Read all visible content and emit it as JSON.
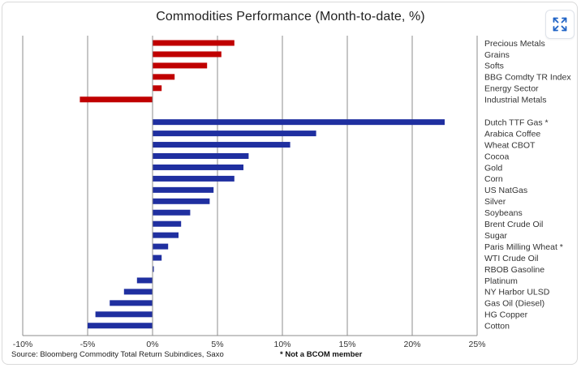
{
  "title": "Commodities Performance (Month-to-date, %)",
  "source": "Source: Bloomberg Commodity Total Return Subindices, Saxo",
  "note": "* Not a BCOM member",
  "expand_icon": "expand-arrows-icon",
  "colors": {
    "sector": "#c00000",
    "commodity": "#1f2fa0",
    "grid": "#8c8c8c",
    "axis": "#8c8c8c"
  },
  "chart_data": {
    "type": "bar",
    "orientation": "horizontal",
    "title": "Commodities Performance (Month-to-date, %)",
    "xlabel": "",
    "ylabel": "",
    "xlim": [
      -10,
      25
    ],
    "x_ticks": [
      "-10%",
      "-5%",
      "0%",
      "5%",
      "10%",
      "15%",
      "20%",
      "25%"
    ],
    "x_tick_values": [
      -10,
      -5,
      0,
      5,
      10,
      15,
      20,
      25
    ],
    "grid": "vertical",
    "groups": [
      {
        "color": "#c00000",
        "categories": [
          "Precious Metals",
          "Grains",
          "Softs",
          "BBG Comdty TR Index",
          "Energy Sector",
          "Industrial Metals"
        ],
        "values": [
          6.3,
          5.3,
          4.2,
          1.7,
          0.7,
          -5.6
        ]
      },
      {
        "color": "#1f2fa0",
        "categories": [
          "Dutch TTF Gas *",
          "Arabica Coffee",
          "Wheat CBOT",
          "Cocoa",
          "Gold",
          "Corn",
          "US NatGas",
          "Silver",
          "Soybeans",
          "Brent Crude Oil",
          "Sugar",
          "Paris Milling Wheat *",
          "WTI Crude Oil",
          "RBOB Gasoline",
          "Platinum",
          "NY Harbor ULSD",
          "Gas Oil (Diesel)",
          "HG Copper",
          "Cotton"
        ],
        "values": [
          22.5,
          12.6,
          10.6,
          7.4,
          7.0,
          6.3,
          4.7,
          4.4,
          2.9,
          2.2,
          2.0,
          1.2,
          0.7,
          0.1,
          -1.2,
          -2.2,
          -3.3,
          -4.4,
          -5.0
        ]
      }
    ]
  }
}
